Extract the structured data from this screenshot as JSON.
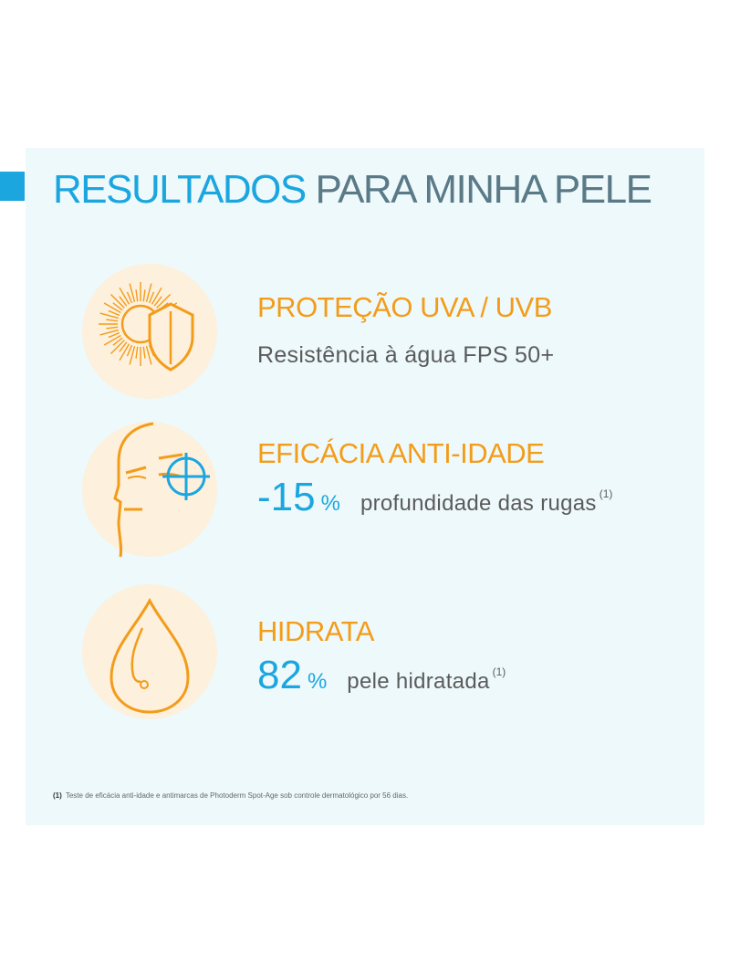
{
  "title": {
    "highlight": "RESULTADOS",
    "rest": "PARA MINHA PELE"
  },
  "benefits": [
    {
      "icon": "sun-shield-icon",
      "heading": "PROTEÇÃO UVA / UVB",
      "subtitle": "Resistência à água FPS 50+"
    },
    {
      "icon": "face-target-icon",
      "heading": "EFICÁCIA ANTI-IDADE",
      "stat": "-15",
      "percent": "%",
      "description": "profundidade das rugas",
      "note": "(1)"
    },
    {
      "icon": "water-drop-icon",
      "heading": "HIDRATA",
      "stat": "82",
      "percent": "%",
      "description": "pele hidratada",
      "note": "(1)"
    }
  ],
  "footnote": {
    "marker": "(1)",
    "text": "Teste de eficácia anti-idade e antimarcas de Photoderm Spot-Age sob controle dermatológico por 56 dias."
  },
  "colors": {
    "accent_blue": "#1ca6e0",
    "accent_orange": "#f39c1a",
    "panel_bg": "#eef9fb",
    "circle_bg": "#fdf0dc"
  }
}
